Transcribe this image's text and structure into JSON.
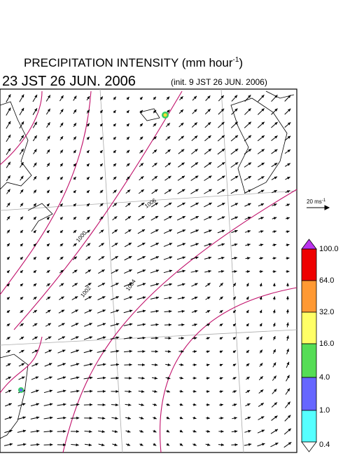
{
  "header": {
    "title": {
      "text": "PRECIPITATION INTENSITY (mm hour",
      "superscript": "-1",
      "closing": ")"
    },
    "valid_time": "23 JST 26 JUN. 2006",
    "init_time": "(init. 9 JST 26 JUN. 2006)"
  },
  "wind_reference": {
    "label": "20 ms",
    "superscript": "-1"
  },
  "contour_labels": [
    "1000",
    "1002",
    "1004",
    "1006"
  ],
  "colorbar": {
    "labels": [
      "100.0",
      "64.0",
      "32.0",
      "16.0",
      "4.0",
      "1.0",
      "0.4"
    ]
  }
}
